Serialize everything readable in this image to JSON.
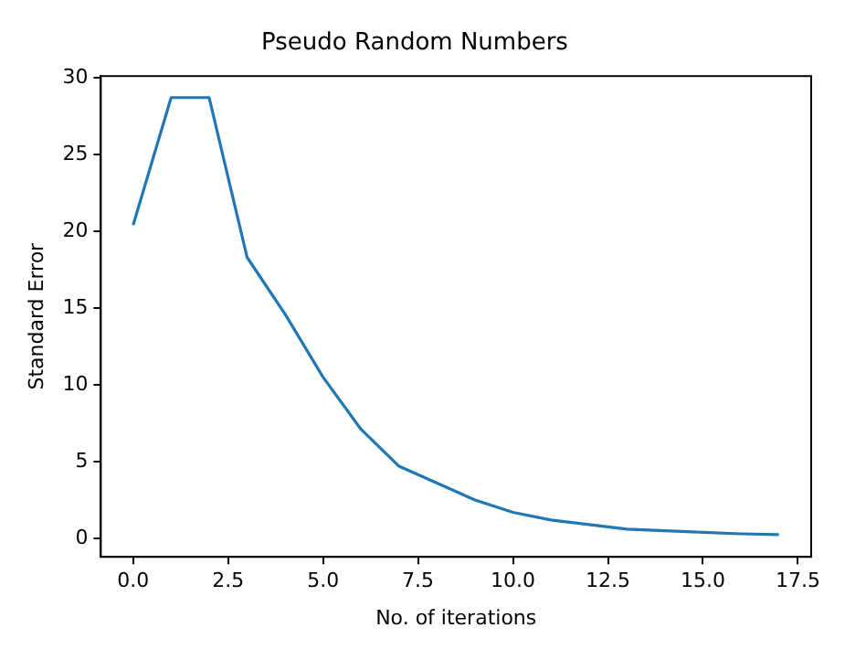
{
  "chart_data": {
    "type": "line",
    "title": "Pseudo Random Numbers",
    "xlabel": "No. of iterations",
    "ylabel": "Standard Error",
    "x": [
      0,
      1,
      2,
      3,
      4,
      5,
      6,
      7,
      8,
      9,
      10,
      11,
      12,
      13,
      14,
      15,
      16,
      17
    ],
    "series": [
      {
        "color": "#1f77b4",
        "values": [
          20.4,
          28.7,
          28.7,
          18.3,
          14.6,
          10.5,
          7.1,
          4.7,
          3.6,
          2.5,
          1.7,
          1.2,
          0.9,
          0.6,
          0.5,
          0.4,
          0.3,
          0.25
        ]
      }
    ],
    "xlim": [
      -0.85,
      17.85
    ],
    "ylim": [
      -1.2,
      30.1
    ],
    "xticks": [
      {
        "value": 0,
        "label": "0.0"
      },
      {
        "value": 2.5,
        "label": "2.5"
      },
      {
        "value": 5,
        "label": "5.0"
      },
      {
        "value": 7.5,
        "label": "7.5"
      },
      {
        "value": 10,
        "label": "10.0"
      },
      {
        "value": 12.5,
        "label": "12.5"
      },
      {
        "value": 15,
        "label": "15.0"
      },
      {
        "value": 17.5,
        "label": "17.5"
      }
    ],
    "yticks": [
      0,
      5,
      10,
      15,
      20,
      25,
      30
    ],
    "grid": false,
    "legend": false,
    "marker": "none",
    "line_style": "solid"
  }
}
